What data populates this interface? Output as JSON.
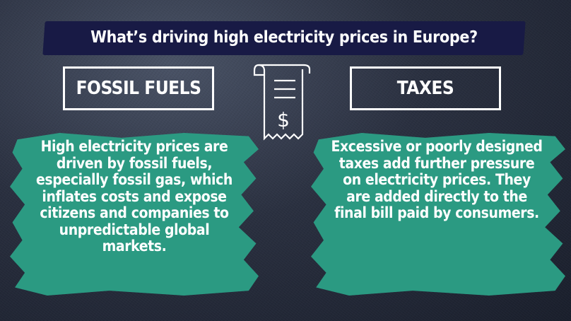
{
  "title": "What’s driving high electricity prices in Europe?",
  "left": {
    "heading": "FOSSIL FUELS",
    "body": "High electricity prices are driven by fossil fuels, especially fossil gas, which inflates costs and expose citizens and companies to unpredictable global markets."
  },
  "right": {
    "heading": "TAXES",
    "body": "Excessive or poorly designed taxes add further pressure on electricity prices. They are added directly to the final bill paid by consumers."
  },
  "icon": {
    "name": "receipt-dollar-icon",
    "symbol": "$"
  },
  "colors": {
    "accent": "#2b9a82",
    "banner": "#181a45"
  }
}
